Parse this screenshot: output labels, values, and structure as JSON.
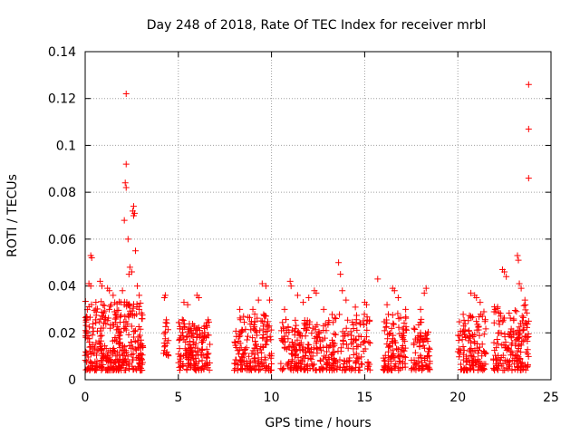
{
  "chart_data": {
    "type": "scatter",
    "title": "Day 248 of 2018, Rate Of TEC Index for receiver mrbl",
    "xlabel": "GPS time / hours",
    "ylabel": "ROTI / TECUs",
    "xlim": [
      0,
      25
    ],
    "ylim": [
      0,
      0.14
    ],
    "xticks": [
      0,
      5,
      10,
      15,
      20,
      25
    ],
    "xtick_labels": [
      "0",
      "5",
      "10",
      "15",
      "20",
      "25"
    ],
    "yticks": [
      0,
      0.02,
      0.04,
      0.06,
      0.08,
      0.1,
      0.12,
      0.14
    ],
    "ytick_labels": [
      "0",
      "0.02",
      "0.04",
      "0.06",
      "0.08",
      "0.1",
      "0.12",
      "0.14"
    ],
    "grid": true,
    "marker": "+",
    "color": "#ff0000",
    "clusters": [
      {
        "x_range": [
          0.0,
          3.1
        ],
        "y_range": [
          0.004,
          0.034
        ],
        "count": 360
      },
      {
        "x_range": [
          4.2,
          4.5
        ],
        "y_range": [
          0.01,
          0.026
        ],
        "count": 20
      },
      {
        "x_range": [
          5.0,
          6.7
        ],
        "y_range": [
          0.004,
          0.026
        ],
        "count": 170
      },
      {
        "x_range": [
          8.0,
          10.0
        ],
        "y_range": [
          0.004,
          0.028
        ],
        "count": 170
      },
      {
        "x_range": [
          10.5,
          13.0
        ],
        "y_range": [
          0.004,
          0.026
        ],
        "count": 190
      },
      {
        "x_range": [
          13.0,
          15.3
        ],
        "y_range": [
          0.004,
          0.028
        ],
        "count": 150
      },
      {
        "x_range": [
          16.0,
          17.3
        ],
        "y_range": [
          0.004,
          0.03
        ],
        "count": 110
      },
      {
        "x_range": [
          17.5,
          18.5
        ],
        "y_range": [
          0.004,
          0.026
        ],
        "count": 80
      },
      {
        "x_range": [
          20.0,
          21.5
        ],
        "y_range": [
          0.004,
          0.028
        ],
        "count": 130
      },
      {
        "x_range": [
          21.9,
          23.8
        ],
        "y_range": [
          0.004,
          0.032
        ],
        "count": 170
      }
    ],
    "points": [
      {
        "x": 2.2,
        "y": 0.122
      },
      {
        "x": 23.8,
        "y": 0.126
      },
      {
        "x": 23.8,
        "y": 0.107
      },
      {
        "x": 23.8,
        "y": 0.086
      },
      {
        "x": 2.2,
        "y": 0.092
      },
      {
        "x": 2.15,
        "y": 0.084
      },
      {
        "x": 2.2,
        "y": 0.082
      },
      {
        "x": 2.6,
        "y": 0.074
      },
      {
        "x": 2.55,
        "y": 0.072
      },
      {
        "x": 2.65,
        "y": 0.071
      },
      {
        "x": 2.6,
        "y": 0.07
      },
      {
        "x": 2.1,
        "y": 0.068
      },
      {
        "x": 2.3,
        "y": 0.06
      },
      {
        "x": 2.7,
        "y": 0.055
      },
      {
        "x": 0.3,
        "y": 0.053
      },
      {
        "x": 0.35,
        "y": 0.052
      },
      {
        "x": 2.4,
        "y": 0.048
      },
      {
        "x": 2.5,
        "y": 0.046
      },
      {
        "x": 2.35,
        "y": 0.045
      },
      {
        "x": 0.2,
        "y": 0.041
      },
      {
        "x": 0.3,
        "y": 0.04
      },
      {
        "x": 0.8,
        "y": 0.042
      },
      {
        "x": 0.9,
        "y": 0.04
      },
      {
        "x": 1.2,
        "y": 0.039
      },
      {
        "x": 1.3,
        "y": 0.038
      },
      {
        "x": 1.5,
        "y": 0.036
      },
      {
        "x": 2.0,
        "y": 0.038
      },
      {
        "x": 2.8,
        "y": 0.04
      },
      {
        "x": 2.9,
        "y": 0.036
      },
      {
        "x": 4.3,
        "y": 0.036
      },
      {
        "x": 4.25,
        "y": 0.035
      },
      {
        "x": 5.3,
        "y": 0.033
      },
      {
        "x": 5.5,
        "y": 0.032
      },
      {
        "x": 6.0,
        "y": 0.036
      },
      {
        "x": 6.1,
        "y": 0.035
      },
      {
        "x": 8.3,
        "y": 0.03
      },
      {
        "x": 8.5,
        "y": 0.027
      },
      {
        "x": 9.0,
        "y": 0.03
      },
      {
        "x": 9.1,
        "y": 0.028
      },
      {
        "x": 9.3,
        "y": 0.034
      },
      {
        "x": 9.5,
        "y": 0.041
      },
      {
        "x": 9.7,
        "y": 0.04
      },
      {
        "x": 9.9,
        "y": 0.034
      },
      {
        "x": 10.7,
        "y": 0.03
      },
      {
        "x": 11.0,
        "y": 0.042
      },
      {
        "x": 11.05,
        "y": 0.04
      },
      {
        "x": 11.4,
        "y": 0.036
      },
      {
        "x": 11.7,
        "y": 0.033
      },
      {
        "x": 12.0,
        "y": 0.035
      },
      {
        "x": 12.3,
        "y": 0.038
      },
      {
        "x": 12.4,
        "y": 0.037
      },
      {
        "x": 12.8,
        "y": 0.03
      },
      {
        "x": 13.6,
        "y": 0.05
      },
      {
        "x": 13.7,
        "y": 0.045
      },
      {
        "x": 13.8,
        "y": 0.038
      },
      {
        "x": 14.0,
        "y": 0.034
      },
      {
        "x": 14.5,
        "y": 0.031
      },
      {
        "x": 15.0,
        "y": 0.033
      },
      {
        "x": 15.1,
        "y": 0.032
      },
      {
        "x": 15.7,
        "y": 0.043
      },
      {
        "x": 16.5,
        "y": 0.039
      },
      {
        "x": 16.6,
        "y": 0.038
      },
      {
        "x": 16.8,
        "y": 0.035
      },
      {
        "x": 16.2,
        "y": 0.032
      },
      {
        "x": 17.2,
        "y": 0.03
      },
      {
        "x": 18.3,
        "y": 0.039
      },
      {
        "x": 18.2,
        "y": 0.037
      },
      {
        "x": 18.0,
        "y": 0.03
      },
      {
        "x": 20.7,
        "y": 0.037
      },
      {
        "x": 20.9,
        "y": 0.036
      },
      {
        "x": 21.0,
        "y": 0.035
      },
      {
        "x": 21.2,
        "y": 0.033
      },
      {
        "x": 21.4,
        "y": 0.029
      },
      {
        "x": 22.0,
        "y": 0.03
      },
      {
        "x": 22.4,
        "y": 0.047
      },
      {
        "x": 22.5,
        "y": 0.046
      },
      {
        "x": 22.6,
        "y": 0.044
      },
      {
        "x": 23.2,
        "y": 0.053
      },
      {
        "x": 23.25,
        "y": 0.051
      },
      {
        "x": 23.3,
        "y": 0.041
      },
      {
        "x": 23.4,
        "y": 0.039
      },
      {
        "x": 23.6,
        "y": 0.034
      },
      {
        "x": 23.8,
        "y": 0.025
      }
    ]
  }
}
